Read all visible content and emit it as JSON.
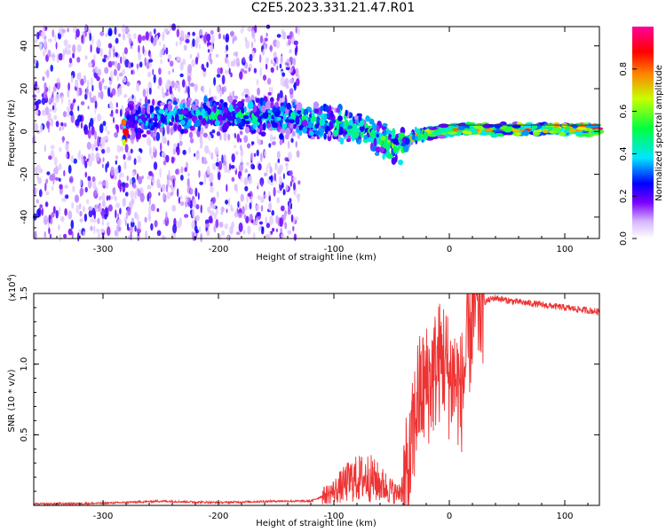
{
  "figure_title": "C2E5.2023.331.21.47.R01",
  "chart_data": [
    {
      "type": "heatmap",
      "title": "C2E5.2023.331.21.47.R01",
      "xlabel": "Height of straight line (km)",
      "ylabel": "Frequency (Hz)",
      "xlim": [
        -360,
        130
      ],
      "ylim": [
        -50,
        49
      ],
      "xticks": [
        -300,
        -200,
        -100,
        0,
        100
      ],
      "yticks": [
        -40,
        -20,
        0,
        20,
        40
      ],
      "colorbar": {
        "label": "Normalized spectral amplitude",
        "range": [
          0.0,
          1.0
        ],
        "ticks": [
          0.0,
          0.2,
          0.4,
          0.6,
          0.8
        ],
        "colormap": [
          "#ffffff",
          "#d6b6ff",
          "#7b00ff",
          "#0000ff",
          "#00e5ff",
          "#00ff40",
          "#c8ff00",
          "#ff8000",
          "#ff0000",
          "#ff0099"
        ]
      },
      "features": {
        "noise_region_x": [
          -360,
          -130
        ],
        "signal_band": [
          {
            "x": -280,
            "freq": 5,
            "amp": 0.4
          },
          {
            "x": -200,
            "freq": 8,
            "amp": 0.45
          },
          {
            "x": -130,
            "freq": 6,
            "amp": 0.45
          },
          {
            "x": -100,
            "freq": 4,
            "amp": 0.5
          },
          {
            "x": -70,
            "freq": 0,
            "amp": 0.5
          },
          {
            "x": -45,
            "freq": -8,
            "amp": 0.55
          },
          {
            "x": -30,
            "freq": -2,
            "amp": 0.65
          },
          {
            "x": 0,
            "freq": 1,
            "amp": 0.7
          },
          {
            "x": 60,
            "freq": 1,
            "amp": 0.75
          },
          {
            "x": 130,
            "freq": 1,
            "amp": 0.85
          }
        ]
      }
    },
    {
      "type": "line",
      "xlabel": "Height of straight line (km)",
      "ylabel": "SNR (10 * v/v)",
      "scale_label": "(x10",
      "scale_exp": "4",
      "xlim": [
        -360,
        130
      ],
      "ylim": [
        0,
        1.5
      ],
      "xticks": [
        -300,
        -200,
        -100,
        0,
        100
      ],
      "yticks": [
        0.5,
        1.0,
        1.5
      ],
      "series": [
        {
          "name": "SNR",
          "color": "#ee3333",
          "x": [
            -360,
            -300,
            -250,
            -200,
            -150,
            -120,
            -100,
            -85,
            -70,
            -55,
            -45,
            -35,
            -28,
            -20,
            -15,
            -10,
            -5,
            0,
            5,
            10,
            15,
            20,
            25,
            30,
            40,
            50,
            60,
            80,
            100,
            120,
            130
          ],
          "y": [
            0.01,
            0.015,
            0.03,
            0.02,
            0.03,
            0.03,
            0.1,
            0.18,
            0.2,
            0.13,
            0.08,
            0.2,
            0.75,
            0.85,
            0.9,
            1.0,
            1.05,
            0.9,
            0.9,
            0.78,
            1.05,
            1.35,
            1.4,
            1.44,
            1.47,
            1.45,
            1.44,
            1.42,
            1.4,
            1.38,
            1.37
          ]
        }
      ]
    }
  ]
}
